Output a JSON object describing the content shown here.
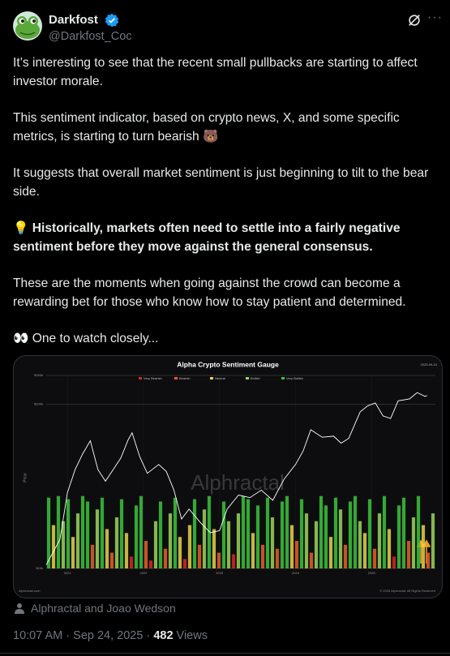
{
  "header": {
    "name": "Darkfost",
    "handle": "@Darkfost_Coc"
  },
  "paragraphs": [
    "It’s interesting to see that the recent small pullbacks are starting to affect investor morale.",
    "This sentiment indicator, based on crypto news, X, and some specific metrics, is starting to turn bearish 🐻",
    "It suggests that overall market sentiment is just beginning to tilt to the bear side.",
    "💡 Historically, markets often need to settle into a fairly negative sentiment before they move against the general consensus.",
    "These are the moments when going against the crowd can become a rewarding bet for those who know how to stay patient and determined.",
    "👀 One to watch closely..."
  ],
  "chart_data": {
    "type": "line",
    "title": "Alpha Crypto Sentiment Gauge",
    "date": "2025-09-24",
    "ylabel": "Price",
    "watermark": "Alphractal",
    "source": "Alphractal.com",
    "copyright": "© 2025 Alphractal. All Rights Reserved",
    "legend": [
      {
        "name": "Very Bearish",
        "color": "#d62828"
      },
      {
        "name": "Bearish",
        "color": "#e8602a"
      },
      {
        "name": "Neutral",
        "color": "#e8d24a"
      },
      {
        "name": "Bullish",
        "color": "#9bd65a"
      },
      {
        "name": "Very Bullish",
        "color": "#3cc43c"
      }
    ],
    "xlim": [
      2020.72,
      2025.84
    ],
    "xticks": [
      2021,
      2022,
      2023,
      2024,
      2025
    ],
    "ylim": [
      10000,
      150000
    ],
    "log_y": true,
    "yticks": [
      {
        "value": 10000,
        "label": "$10k"
      },
      {
        "value": 100000,
        "label": "$100k"
      },
      {
        "value": 150000,
        "label": "$150k"
      }
    ],
    "y2lim": [
      0,
      100
    ],
    "price": {
      "color": "#ffffff",
      "x": [
        2020.72,
        2020.9,
        2021.0,
        2021.1,
        2021.2,
        2021.3,
        2021.4,
        2021.5,
        2021.6,
        2021.7,
        2021.8,
        2021.85,
        2021.95,
        2022.05,
        2022.2,
        2022.3,
        2022.4,
        2022.5,
        2022.6,
        2022.75,
        2022.88,
        2023.0,
        2023.1,
        2023.25,
        2023.4,
        2023.55,
        2023.7,
        2023.85,
        2024.0,
        2024.1,
        2024.2,
        2024.35,
        2024.5,
        2024.6,
        2024.7,
        2024.85,
        2024.95,
        2025.05,
        2025.15,
        2025.25,
        2025.35,
        2025.5,
        2025.6,
        2025.7,
        2025.73
      ],
      "values": [
        10500,
        15000,
        29000,
        40000,
        50000,
        60000,
        40000,
        34000,
        40000,
        47000,
        61000,
        67000,
        48000,
        38000,
        43000,
        39000,
        30000,
        20000,
        23000,
        19000,
        16500,
        17000,
        23000,
        28000,
        27000,
        30000,
        26000,
        35000,
        43000,
        52000,
        70000,
        63000,
        64000,
        58000,
        62000,
        90000,
        98000,
        102000,
        85000,
        82000,
        105000,
        108000,
        118000,
        112000,
        113000
      ]
    },
    "sentiment": {
      "axis": "y2",
      "values": [
        90,
        55,
        92,
        60,
        88,
        40,
        70,
        92,
        85,
        30,
        75,
        90,
        50,
        20,
        65,
        88,
        45,
        15,
        80,
        92,
        35,
        10,
        60,
        85,
        25,
        70,
        90,
        40,
        12,
        55,
        88,
        30,
        75,
        92,
        50,
        20,
        85,
        60,
        18,
        70,
        92,
        88,
        45,
        80,
        30,
        90,
        65,
        25,
        85,
        92,
        55,
        35,
        88,
        70,
        20,
        60,
        92,
        80,
        40,
        90,
        75,
        30,
        85,
        92,
        60,
        45,
        88,
        25,
        70,
        92,
        50,
        15,
        80,
        90,
        35,
        65,
        92,
        55,
        20,
        70
      ]
    }
  },
  "attribution": "Alphractal and Joao Wedson",
  "footer": {
    "timestamp": "10:07 AM · Sep 24, 2025 ·",
    "views": "482",
    "views_label": "Views"
  }
}
